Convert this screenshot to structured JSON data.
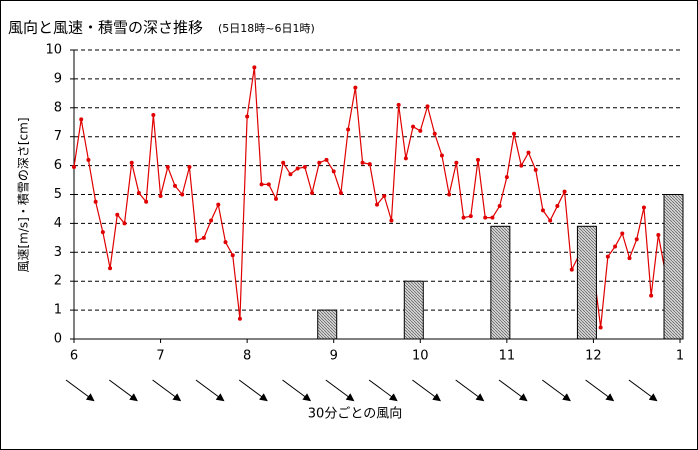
{
  "chart_data": {
    "type": "line_bar",
    "title": "風向と風速・積雪の深さ推移",
    "subtitle": "(5日18時~6日1時)",
    "y_label": "風速[m/s]・積雪の深さ[cm]",
    "x_label": "30分ごとの風向",
    "categories": [
      "6",
      null,
      null,
      null,
      null,
      null,
      null,
      null,
      null,
      null,
      null,
      null,
      "7",
      null,
      null,
      null,
      null,
      null,
      null,
      null,
      null,
      null,
      null,
      null,
      "8",
      null,
      null,
      null,
      null,
      null,
      null,
      null,
      null,
      null,
      null,
      null,
      "9",
      null,
      null,
      null,
      null,
      null,
      null,
      null,
      null,
      null,
      null,
      null,
      "10",
      null,
      null,
      null,
      null,
      null,
      null,
      null,
      null,
      null,
      null,
      null,
      "11",
      null,
      null,
      null,
      null,
      null,
      null,
      null,
      null,
      null,
      null,
      null,
      "12",
      null,
      null,
      null,
      null,
      null,
      null,
      null,
      null,
      null,
      null,
      null,
      "1"
    ],
    "series": [
      {
        "kind": "line",
        "color": "#e00000",
        "values": [
          5.95,
          7.6,
          6.2,
          4.75,
          3.7,
          2.45,
          4.3,
          4.0,
          6.1,
          5.05,
          4.75,
          7.75,
          4.95,
          5.95,
          5.3,
          5.0,
          5.95,
          3.4,
          3.5,
          4.1,
          4.65,
          3.35,
          2.9,
          0.7,
          7.7,
          9.4,
          5.35,
          5.35,
          4.85,
          6.1,
          5.7,
          5.9,
          5.95,
          5.05,
          6.1,
          6.2,
          5.8,
          5.05,
          7.25,
          8.7,
          6.1,
          6.05,
          4.65,
          4.95,
          4.1,
          8.1,
          6.25,
          7.35,
          7.2,
          8.05,
          7.1,
          6.35,
          5.0,
          6.1,
          4.2,
          4.25,
          6.2,
          4.2,
          4.2,
          4.6,
          5.6,
          7.1,
          6.0,
          6.45,
          5.85,
          4.45,
          4.1,
          4.6,
          5.1,
          2.4,
          2.9,
          3.5,
          2.4,
          0.4,
          2.85,
          3.2,
          3.65,
          2.8,
          3.45,
          4.55,
          1.5,
          3.6,
          2.25,
          2.0,
          3.4
        ]
      },
      {
        "kind": "bar",
        "color": "#c8c8c8",
        "values": [
          null,
          null,
          null,
          null,
          null,
          null,
          null,
          null,
          null,
          null,
          null,
          null,
          null,
          null,
          null,
          null,
          null,
          null,
          null,
          null,
          null,
          null,
          null,
          null,
          null,
          null,
          null,
          null,
          null,
          null,
          null,
          null,
          null,
          null,
          null,
          null,
          1,
          null,
          null,
          null,
          null,
          null,
          null,
          null,
          null,
          null,
          null,
          null,
          2,
          null,
          null,
          null,
          null,
          null,
          null,
          null,
          null,
          null,
          null,
          null,
          3.9,
          null,
          null,
          null,
          null,
          null,
          null,
          null,
          null,
          null,
          null,
          null,
          3.9,
          null,
          null,
          null,
          null,
          null,
          null,
          null,
          null,
          null,
          null,
          null,
          5
        ]
      }
    ],
    "ylim": [
      0,
      10
    ],
    "yticks": [
      0,
      1,
      2,
      3,
      4,
      5,
      6,
      7,
      8,
      9,
      10
    ],
    "grid": true
  }
}
